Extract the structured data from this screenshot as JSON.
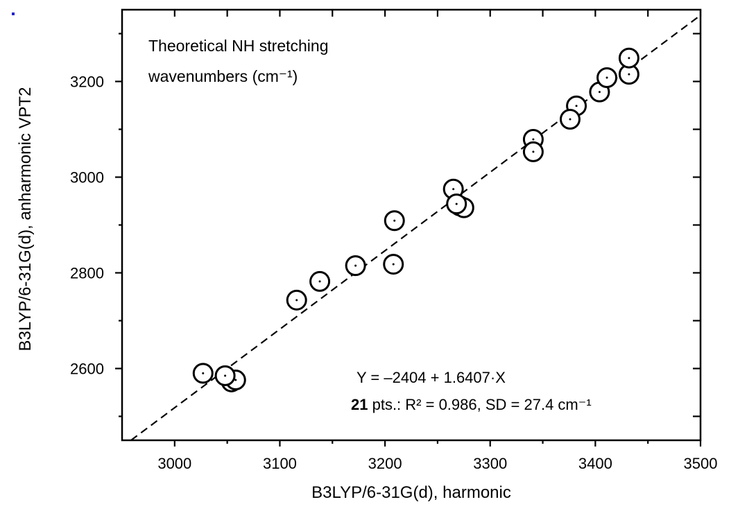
{
  "artifact": {
    "color": "#2222cc"
  },
  "annotation": {
    "line1": "Theoretical NH stretching",
    "line2": "wavenumbers (cm⁻¹)"
  },
  "fit_text": {
    "equation": "Y = –2404 + 1.6407·X",
    "stats_bold": "21",
    "stats_rest": " pts.: R² = 0.986, SD = 27.4 cm⁻¹"
  },
  "chart_data": {
    "type": "scatter",
    "title": "Theoretical NH stretching wavenumbers (cm⁻¹)",
    "xlabel": "B3LYP/6-31G(d), harmonic",
    "ylabel": "B3LYP/6-31G(d), anharmonic VPT2",
    "xlim": [
      2950,
      3500
    ],
    "ylim": [
      2450,
      3350
    ],
    "x_major_ticks": [
      3000,
      3100,
      3200,
      3300,
      3400,
      3500
    ],
    "x_minor_ticks": [
      3050,
      3150,
      3250,
      3350,
      3450
    ],
    "y_major_ticks": [
      2600,
      2800,
      3000,
      3200
    ],
    "y_minor_ticks": [
      2500,
      2700,
      2900,
      3100,
      3300
    ],
    "grid": false,
    "legend": "none",
    "marker": "open-circle-with-center-dot",
    "points": [
      [
        3054,
        2572
      ],
      [
        3058,
        2576
      ],
      [
        3048,
        2585
      ],
      [
        3027,
        2590
      ],
      [
        3116,
        2743
      ],
      [
        3138,
        2782
      ],
      [
        3172,
        2815
      ],
      [
        3208,
        2818
      ],
      [
        3209,
        2909
      ],
      [
        3271,
        2940
      ],
      [
        3275,
        2936
      ],
      [
        3265,
        2975
      ],
      [
        3268,
        2944
      ],
      [
        3341,
        3079
      ],
      [
        3341,
        3053
      ],
      [
        3382,
        3149
      ],
      [
        3376,
        3121
      ],
      [
        3404,
        3178
      ],
      [
        3411,
        3208
      ],
      [
        3432,
        3215
      ],
      [
        3432,
        3249
      ]
    ],
    "fit": {
      "slope": 1.6407,
      "intercept": -2404,
      "equation": "Y = –2404 + 1.6407·X",
      "n_points": 21,
      "r_squared": 0.986,
      "sd": 27.4,
      "sd_units": "cm⁻¹",
      "line_style": "dashed"
    }
  }
}
